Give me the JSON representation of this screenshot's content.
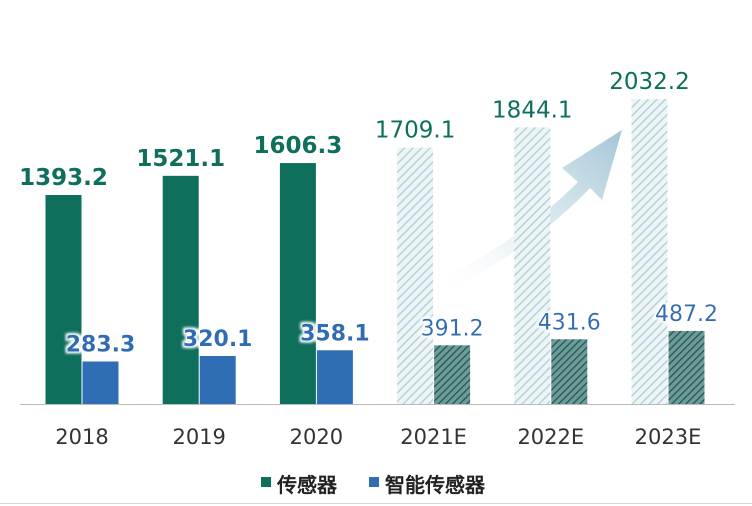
{
  "chart_data": {
    "type": "bar",
    "title": "",
    "xlabel": "",
    "ylabel": "",
    "categories": [
      "2018",
      "2019",
      "2020",
      "2021E",
      "2022E",
      "2023E"
    ],
    "estimated": [
      false,
      false,
      false,
      true,
      true,
      true
    ],
    "ylim": [
      0,
      2100
    ],
    "grid": false,
    "legend_position": "bottom",
    "series": [
      {
        "name": "传感器",
        "values": [
          1393.2,
          1521.1,
          1606.3,
          1709.1,
          1844.1,
          2032.2
        ],
        "labels": [
          "1393.2",
          "1521.1",
          "1606.3",
          "1709.1",
          "1844.1",
          "2032.2"
        ],
        "color": "#0d6f5c",
        "estimate_color": "#c9dfe4",
        "label_color": "#0d6f5c"
      },
      {
        "name": "智能传感器",
        "values": [
          283.3,
          320.1,
          358.1,
          391.2,
          431.6,
          487.2
        ],
        "labels": [
          "283.3",
          "320.1",
          "358.1",
          "391.2",
          "431.6",
          "487.2"
        ],
        "color": "#2f6db5",
        "estimate_color": "#1c5e58",
        "label_color": "#2f6db5"
      }
    ],
    "arrow": {
      "direction": "up-right",
      "color": "#a9c9d8"
    }
  }
}
